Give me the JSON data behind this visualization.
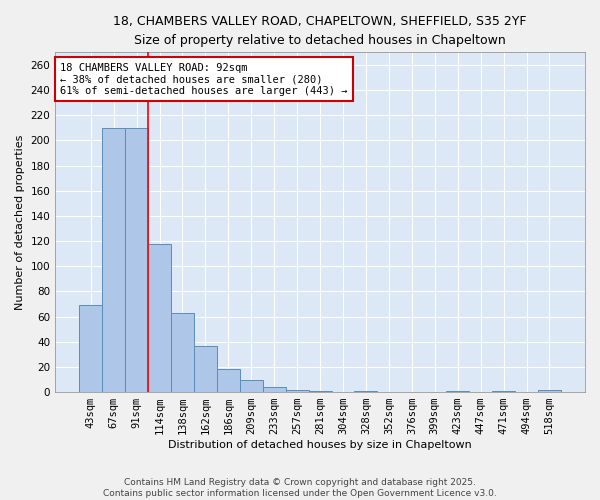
{
  "title_line1": "18, CHAMBERS VALLEY ROAD, CHAPELTOWN, SHEFFIELD, S35 2YF",
  "title_line2": "Size of property relative to detached houses in Chapeltown",
  "xlabel": "Distribution of detached houses by size in Chapeltown",
  "ylabel": "Number of detached properties",
  "categories": [
    "43sqm",
    "67sqm",
    "91sqm",
    "114sqm",
    "138sqm",
    "162sqm",
    "186sqm",
    "209sqm",
    "233sqm",
    "257sqm",
    "281sqm",
    "304sqm",
    "328sqm",
    "352sqm",
    "376sqm",
    "399sqm",
    "423sqm",
    "447sqm",
    "471sqm",
    "494sqm",
    "518sqm"
  ],
  "values": [
    69,
    210,
    210,
    118,
    63,
    37,
    18,
    10,
    4,
    2,
    1,
    0,
    1,
    0,
    0,
    0,
    1,
    0,
    1,
    0,
    2
  ],
  "bar_color": "#aec6e8",
  "bar_edge_color": "#5b8db8",
  "red_line_x": 2.5,
  "annotation_text": "18 CHAMBERS VALLEY ROAD: 92sqm\n← 38% of detached houses are smaller (280)\n61% of semi-detached houses are larger (443) →",
  "annotation_box_color": "#ffffff",
  "annotation_box_edge": "#cc0000",
  "footnote": "Contains HM Land Registry data © Crown copyright and database right 2025.\nContains public sector information licensed under the Open Government Licence v3.0.",
  "ylim": [
    0,
    270
  ],
  "yticks": [
    0,
    20,
    40,
    60,
    80,
    100,
    120,
    140,
    160,
    180,
    200,
    220,
    240,
    260
  ],
  "bg_color": "#dce8f5",
  "grid_color": "#ffffff",
  "title_fontsize": 9,
  "subtitle_fontsize": 8.5,
  "axis_label_fontsize": 8,
  "tick_fontsize": 7.5,
  "annotation_fontsize": 7.5,
  "footnote_fontsize": 6.5
}
